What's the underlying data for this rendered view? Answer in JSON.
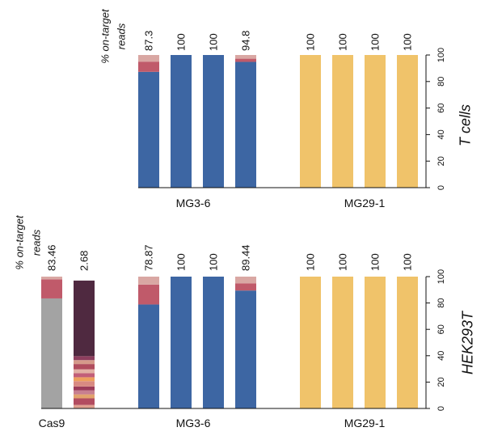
{
  "chart_data": [
    {
      "type": "bar",
      "title": "T cells",
      "ylabel": "% on-target reads",
      "ylabel_lines": [
        "% on-target",
        "reads"
      ],
      "ylim": [
        0,
        100
      ],
      "yticks": [
        "0",
        "20",
        "40",
        "60",
        "80",
        "100"
      ],
      "groups": [
        {
          "name": "MG3-6",
          "start": 0,
          "count": 4
        },
        {
          "name": "MG29-1",
          "start": 4,
          "count": 4
        }
      ],
      "bars": [
        {
          "group": "MG3-6",
          "label": "87.3",
          "segments": [
            {
              "value": 87.3,
              "color": "#3d66a3"
            },
            {
              "value": 7.7,
              "color": "#c05a6a"
            },
            {
              "value": 5.0,
              "color": "#d9a7a3"
            }
          ]
        },
        {
          "group": "MG3-6",
          "label": "100",
          "segments": [
            {
              "value": 100,
              "color": "#3d66a3"
            }
          ]
        },
        {
          "group": "MG3-6",
          "label": "100",
          "segments": [
            {
              "value": 100,
              "color": "#3d66a3"
            }
          ]
        },
        {
          "group": "MG3-6",
          "label": "94.8",
          "segments": [
            {
              "value": 94.8,
              "color": "#3d66a3"
            },
            {
              "value": 2.4,
              "color": "#c05a6a"
            },
            {
              "value": 2.8,
              "color": "#d9a7a3"
            }
          ]
        },
        {
          "group": "MG29-1",
          "label": "100",
          "segments": [
            {
              "value": 100,
              "color": "#f0c36a"
            }
          ]
        },
        {
          "group": "MG29-1",
          "label": "100",
          "segments": [
            {
              "value": 100,
              "color": "#f0c36a"
            }
          ]
        },
        {
          "group": "MG29-1",
          "label": "100",
          "segments": [
            {
              "value": 100,
              "color": "#f0c36a"
            }
          ]
        },
        {
          "group": "MG29-1",
          "label": "100",
          "segments": [
            {
              "value": 100,
              "color": "#f0c36a"
            }
          ]
        }
      ]
    },
    {
      "type": "bar",
      "title": "HEK293T",
      "ylabel": "% on-target reads",
      "ylabel_lines": [
        "% on-target",
        "reads"
      ],
      "ylim": [
        0,
        100
      ],
      "yticks": [
        "0",
        "20",
        "40",
        "60",
        "80",
        "100"
      ],
      "groups": [
        {
          "name": "Cas9",
          "start": 0,
          "count": 2
        },
        {
          "name": "MG3-6",
          "start": 2,
          "count": 4
        },
        {
          "name": "MG29-1",
          "start": 6,
          "count": 4
        }
      ],
      "bars": [
        {
          "group": "Cas9",
          "label": "83.46",
          "segments": [
            {
              "value": 83.46,
              "color": "#a3a3a3"
            },
            {
              "value": 14.5,
              "color": "#c05a6a"
            },
            {
              "value": 2.04,
              "color": "#d9a7a3"
            }
          ]
        },
        {
          "group": "Cas9",
          "label": "2.68",
          "segments": [
            {
              "value": 2.68,
              "color": "#e0a090"
            },
            {
              "value": 5.0,
              "color": "#b24c60"
            },
            {
              "value": 3.0,
              "color": "#e2a36d"
            },
            {
              "value": 3.0,
              "color": "#c77f90"
            },
            {
              "value": 3.0,
              "color": "#9d3c5a"
            },
            {
              "value": 4.0,
              "color": "#d98a82"
            },
            {
              "value": 3.0,
              "color": "#ed9f5e"
            },
            {
              "value": 3.0,
              "color": "#c25e79"
            },
            {
              "value": 3.0,
              "color": "#e2b0a5"
            },
            {
              "value": 4.0,
              "color": "#b04d5e"
            },
            {
              "value": 3.0,
              "color": "#d59a8a"
            },
            {
              "value": 3.0,
              "color": "#8e3e5e"
            },
            {
              "value": 57.32,
              "color": "#4f2940"
            }
          ]
        },
        {
          "group": "MG3-6",
          "label": "78.87",
          "segments": [
            {
              "value": 78.87,
              "color": "#3d66a3"
            },
            {
              "value": 15.1,
              "color": "#c05a6a"
            },
            {
              "value": 6.03,
              "color": "#d9a7a3"
            }
          ]
        },
        {
          "group": "MG3-6",
          "label": "100",
          "segments": [
            {
              "value": 100,
              "color": "#3d66a3"
            }
          ]
        },
        {
          "group": "MG3-6",
          "label": "100",
          "segments": [
            {
              "value": 100,
              "color": "#3d66a3"
            }
          ]
        },
        {
          "group": "MG3-6",
          "label": "89.44",
          "segments": [
            {
              "value": 89.44,
              "color": "#3d66a3"
            },
            {
              "value": 5.5,
              "color": "#c05a6a"
            },
            {
              "value": 5.06,
              "color": "#d9a7a3"
            }
          ]
        },
        {
          "group": "MG29-1",
          "label": "100",
          "segments": [
            {
              "value": 100,
              "color": "#f0c36a"
            }
          ]
        },
        {
          "group": "MG29-1",
          "label": "100",
          "segments": [
            {
              "value": 100,
              "color": "#f0c36a"
            }
          ]
        },
        {
          "group": "MG29-1",
          "label": "100",
          "segments": [
            {
              "value": 100,
              "color": "#f0c36a"
            }
          ]
        },
        {
          "group": "MG29-1",
          "label": "100",
          "segments": [
            {
              "value": 100,
              "color": "#f0c36a"
            }
          ]
        }
      ]
    }
  ]
}
